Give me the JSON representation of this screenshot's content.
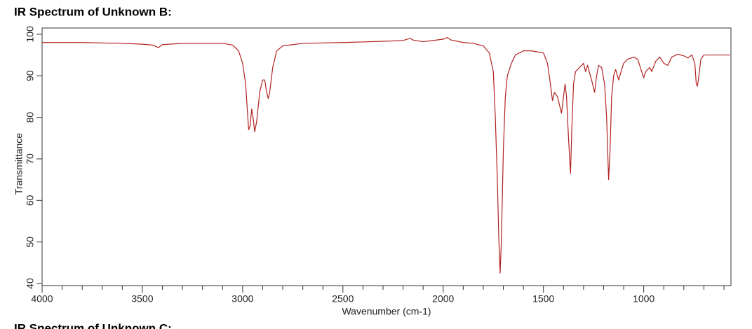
{
  "chart_data": {
    "type": "line",
    "title": "IR Spectrum of Unknown B:",
    "next_title": "IR Spectrum of Unknown C:",
    "xlabel": "Wavenumber (cm-1)",
    "ylabel": "Transmittance",
    "x": [
      4000,
      3800,
      3600,
      3500,
      3450,
      3420,
      3400,
      3300,
      3100,
      3050,
      3020,
      3000,
      2985,
      2970,
      2962,
      2955,
      2948,
      2940,
      2930,
      2915,
      2900,
      2890,
      2880,
      2872,
      2865,
      2850,
      2830,
      2800,
      2700,
      2500,
      2300,
      2200,
      2165,
      2150,
      2100,
      2000,
      1980,
      1960,
      1900,
      1850,
      1800,
      1770,
      1750,
      1740,
      1730,
      1722,
      1716,
      1710,
      1700,
      1690,
      1680,
      1660,
      1640,
      1600,
      1560,
      1500,
      1480,
      1465,
      1455,
      1445,
      1430,
      1420,
      1410,
      1400,
      1392,
      1385,
      1375,
      1365,
      1358,
      1350,
      1340,
      1320,
      1300,
      1290,
      1280,
      1260,
      1245,
      1235,
      1225,
      1210,
      1195,
      1185,
      1175,
      1168,
      1160,
      1150,
      1140,
      1125,
      1110,
      1100,
      1080,
      1050,
      1030,
      1010,
      1000,
      990,
      970,
      960,
      940,
      920,
      900,
      880,
      860,
      830,
      800,
      780,
      760,
      745,
      738,
      732,
      725,
      715,
      700,
      650,
      600,
      570
    ],
    "series": [
      {
        "name": "Unknown B",
        "color": "#b22222",
        "values": [
          98,
          98,
          97.8,
          97.6,
          97.4,
          96.8,
          97.5,
          97.8,
          97.8,
          97.4,
          96,
          93,
          88,
          77,
          78,
          82,
          80,
          76.5,
          79,
          86,
          89,
          89,
          86,
          84.5,
          86,
          92,
          96,
          97.2,
          97.8,
          98,
          98.3,
          98.5,
          99,
          98.6,
          98.2,
          98.8,
          99.2,
          98.6,
          98,
          97.8,
          97.2,
          95.5,
          91,
          80,
          65,
          50,
          42.5,
          50,
          72,
          85,
          90,
          93,
          95,
          96,
          96,
          95.5,
          93,
          88,
          84,
          86,
          85,
          83,
          81,
          85,
          88,
          85,
          75,
          66.5,
          78,
          88,
          91,
          92,
          93,
          91,
          92.5,
          89,
          86,
          90,
          92.5,
          92,
          88,
          80,
          65,
          72,
          85,
          90,
          91.5,
          89,
          91.5,
          93,
          94,
          94.5,
          94,
          91,
          89.5,
          91,
          92,
          91,
          93.5,
          94.5,
          93,
          92.5,
          94.5,
          95.2,
          94.8,
          94.3,
          95,
          93,
          88,
          87.5,
          90,
          94,
          95,
          95,
          95,
          95
        ]
      }
    ],
    "xlim": [
      4000,
      565
    ],
    "xticks": [
      4000,
      3500,
      3000,
      2500,
      2000,
      1500,
      1000
    ],
    "xminorticks": [
      3900,
      3800,
      3700,
      3600,
      3400,
      3300,
      3200,
      3100,
      2900,
      2800,
      2700,
      2600,
      2400,
      2300,
      2200,
      2100,
      1900,
      1800,
      1700,
      1600,
      1400,
      1300,
      1200,
      1100,
      900,
      800,
      700,
      600
    ],
    "ylim": [
      39.5,
      101.5
    ],
    "yticks": [
      40,
      50,
      60,
      70,
      80,
      90,
      100
    ],
    "grid": false
  }
}
